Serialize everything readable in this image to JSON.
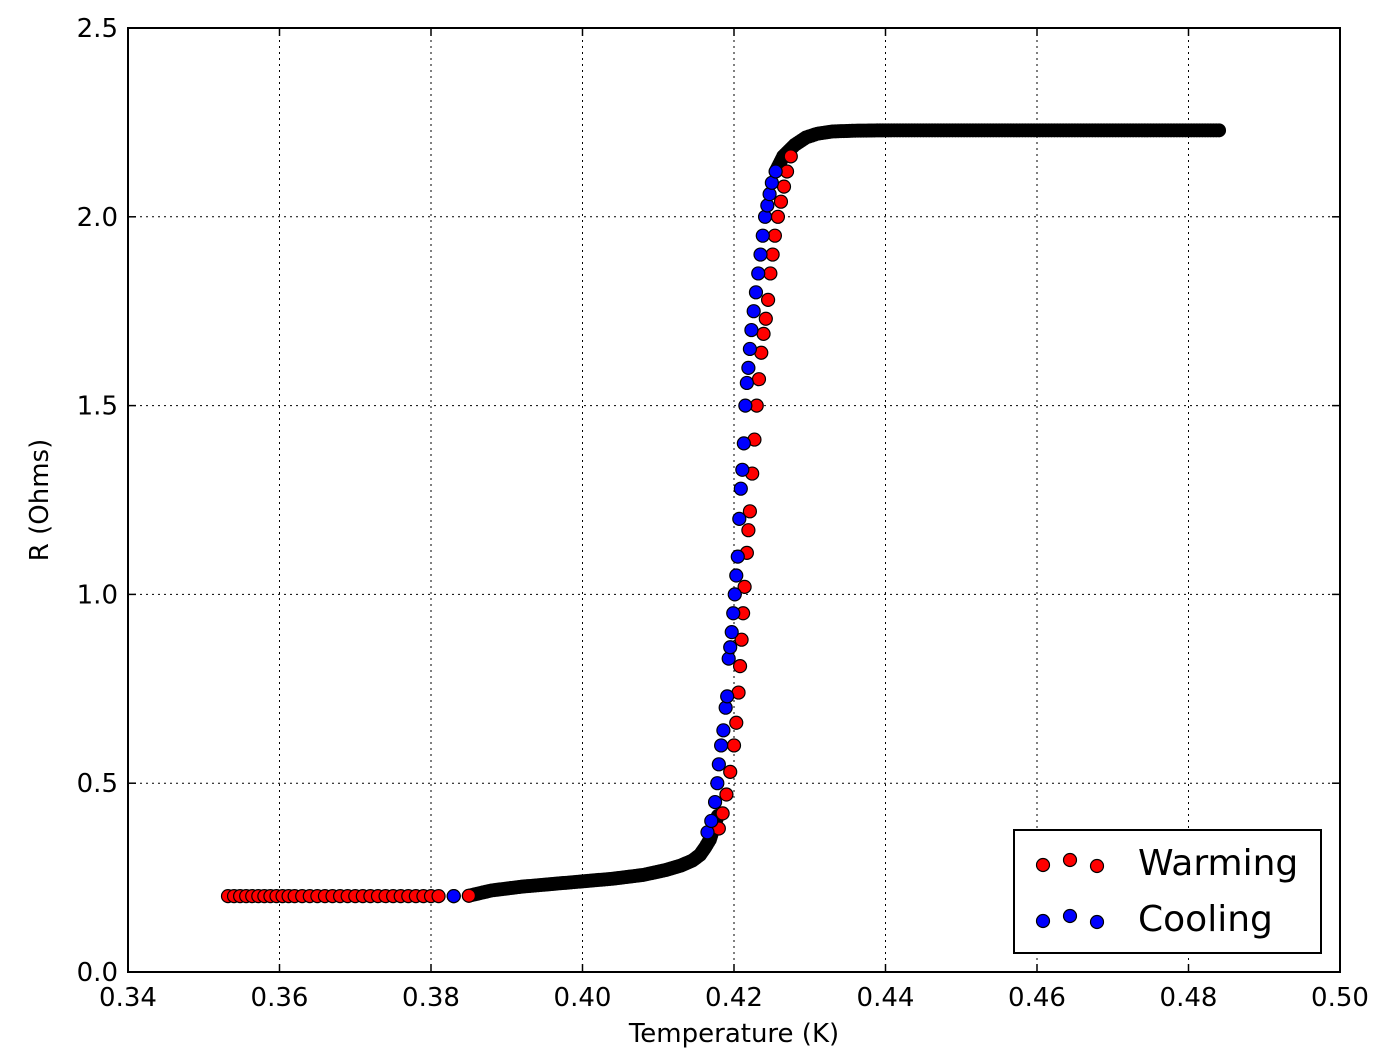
{
  "chart_data": {
    "type": "scatter",
    "title": "",
    "xlabel": "Temperature (K)",
    "ylabel": "R (Ohms)",
    "xlim": [
      0.34,
      0.5
    ],
    "ylim": [
      0.0,
      2.5
    ],
    "xticks": [
      0.34,
      0.36,
      0.38,
      0.4,
      0.42,
      0.44,
      0.46,
      0.48,
      0.5
    ],
    "xtick_labels": [
      "0.34",
      "0.36",
      "0.38",
      "0.40",
      "0.42",
      "0.44",
      "0.46",
      "0.48",
      "0.50"
    ],
    "yticks": [
      0.0,
      0.5,
      1.0,
      1.5,
      2.0,
      2.5
    ],
    "ytick_labels": [
      "0.0",
      "0.5",
      "1.0",
      "1.5",
      "2.0",
      "2.5"
    ],
    "grid": true,
    "legend_position": "lower-right",
    "colors": {
      "warming": "#ff0000",
      "cooling": "#0000ff",
      "edge": "#000000",
      "overlap": "#000000"
    },
    "series": [
      {
        "name": "Warming",
        "color": "#ff0000",
        "points": [
          [
            0.3532,
            0.201
          ],
          [
            0.354,
            0.201
          ],
          [
            0.3548,
            0.201
          ],
          [
            0.3556,
            0.201
          ],
          [
            0.3564,
            0.201
          ],
          [
            0.3572,
            0.201
          ],
          [
            0.358,
            0.201
          ],
          [
            0.3588,
            0.201
          ],
          [
            0.3596,
            0.201
          ],
          [
            0.3604,
            0.201
          ],
          [
            0.3612,
            0.201
          ],
          [
            0.362,
            0.201
          ],
          [
            0.363,
            0.201
          ],
          [
            0.364,
            0.201
          ],
          [
            0.365,
            0.201
          ],
          [
            0.366,
            0.201
          ],
          [
            0.367,
            0.201
          ],
          [
            0.368,
            0.201
          ],
          [
            0.369,
            0.201
          ],
          [
            0.37,
            0.201
          ],
          [
            0.371,
            0.201
          ],
          [
            0.372,
            0.201
          ],
          [
            0.373,
            0.201
          ],
          [
            0.374,
            0.201
          ],
          [
            0.375,
            0.201
          ],
          [
            0.376,
            0.201
          ],
          [
            0.377,
            0.201
          ],
          [
            0.378,
            0.201
          ],
          [
            0.379,
            0.201
          ],
          [
            0.38,
            0.201
          ],
          [
            0.381,
            0.201
          ],
          [
            0.383,
            0.201
          ],
          [
            0.385,
            0.202
          ],
          [
            0.418,
            0.38
          ],
          [
            0.4185,
            0.42
          ],
          [
            0.419,
            0.47
          ],
          [
            0.4195,
            0.53
          ],
          [
            0.42,
            0.6
          ],
          [
            0.4203,
            0.66
          ],
          [
            0.4206,
            0.74
          ],
          [
            0.4208,
            0.81
          ],
          [
            0.421,
            0.88
          ],
          [
            0.4212,
            0.95
          ],
          [
            0.4214,
            1.02
          ],
          [
            0.4217,
            1.11
          ],
          [
            0.4219,
            1.17
          ],
          [
            0.4221,
            1.22
          ],
          [
            0.4224,
            1.32
          ],
          [
            0.4227,
            1.41
          ],
          [
            0.423,
            1.5
          ],
          [
            0.4233,
            1.57
          ],
          [
            0.4236,
            1.64
          ],
          [
            0.4239,
            1.69
          ],
          [
            0.4242,
            1.73
          ],
          [
            0.4245,
            1.78
          ],
          [
            0.4248,
            1.85
          ],
          [
            0.4251,
            1.9
          ],
          [
            0.4254,
            1.95
          ],
          [
            0.4258,
            2.0
          ],
          [
            0.4262,
            2.04
          ],
          [
            0.4266,
            2.08
          ],
          [
            0.427,
            2.12
          ],
          [
            0.4275,
            2.16
          ]
        ]
      },
      {
        "name": "Cooling",
        "color": "#0000ff",
        "points": [
          [
            0.383,
            0.201
          ],
          [
            0.4165,
            0.37
          ],
          [
            0.417,
            0.4
          ],
          [
            0.4175,
            0.45
          ],
          [
            0.4178,
            0.5
          ],
          [
            0.418,
            0.55
          ],
          [
            0.4183,
            0.6
          ],
          [
            0.4186,
            0.64
          ],
          [
            0.4189,
            0.7
          ],
          [
            0.4191,
            0.73
          ],
          [
            0.4193,
            0.83
          ],
          [
            0.4195,
            0.86
          ],
          [
            0.4197,
            0.9
          ],
          [
            0.4199,
            0.95
          ],
          [
            0.4201,
            1.0
          ],
          [
            0.4203,
            1.05
          ],
          [
            0.4205,
            1.1
          ],
          [
            0.4207,
            1.2
          ],
          [
            0.4209,
            1.28
          ],
          [
            0.4211,
            1.33
          ],
          [
            0.4213,
            1.4
          ],
          [
            0.4215,
            1.5
          ],
          [
            0.4217,
            1.56
          ],
          [
            0.4219,
            1.6
          ],
          [
            0.4221,
            1.65
          ],
          [
            0.4223,
            1.7
          ],
          [
            0.4226,
            1.75
          ],
          [
            0.4229,
            1.8
          ],
          [
            0.4232,
            1.85
          ],
          [
            0.4235,
            1.9
          ],
          [
            0.4238,
            1.95
          ],
          [
            0.4241,
            2.0
          ],
          [
            0.4244,
            2.03
          ],
          [
            0.4247,
            2.06
          ],
          [
            0.425,
            2.09
          ],
          [
            0.4255,
            2.12
          ]
        ]
      }
    ],
    "overlap_segments": [
      {
        "x": [
          0.385,
          0.388,
          0.392,
          0.396,
          0.4,
          0.404,
          0.408,
          0.411,
          0.413,
          0.4145,
          0.4155,
          0.4162,
          0.4168,
          0.4172,
          0.4176,
          0.418
        ],
        "y": [
          0.202,
          0.216,
          0.226,
          0.233,
          0.24,
          0.247,
          0.257,
          0.27,
          0.282,
          0.295,
          0.31,
          0.33,
          0.35,
          0.375,
          0.4,
          0.42
        ]
      },
      {
        "x": [
          0.4255,
          0.4265,
          0.428,
          0.4295,
          0.431,
          0.433,
          0.436,
          0.44,
          0.445,
          0.45,
          0.455,
          0.46,
          0.465,
          0.47,
          0.475,
          0.48,
          0.4844
        ],
        "y": [
          2.12,
          2.16,
          2.19,
          2.21,
          2.22,
          2.226,
          2.228,
          2.229,
          2.229,
          2.229,
          2.229,
          2.229,
          2.229,
          2.229,
          2.229,
          2.229,
          2.229
        ]
      }
    ]
  }
}
